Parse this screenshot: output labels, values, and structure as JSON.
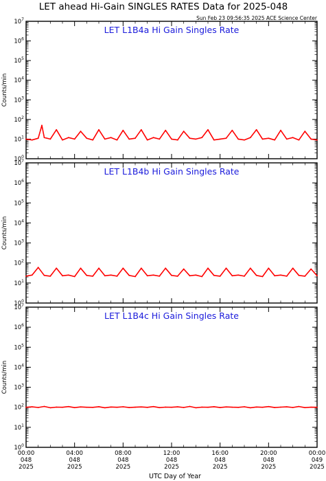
{
  "page": {
    "title": "LET ahead Hi-Gain SINGLES RATES Data for 2025-048",
    "timestamp": "Sun Feb 23 09:56:35 2025 ACE Science Center",
    "xlabel": "UTC Day of Year"
  },
  "colors": {
    "series": "#ff0000",
    "panel_title": "#1a1adb",
    "axis": "#000000",
    "background": "#ffffff"
  },
  "x_ticks": [
    {
      "time": "00:00",
      "day": "048",
      "year": "2025",
      "hours": 0
    },
    {
      "time": "04:00",
      "day": "048",
      "year": "2025",
      "hours": 4
    },
    {
      "time": "08:00",
      "day": "048",
      "year": "2025",
      "hours": 8
    },
    {
      "time": "12:00",
      "day": "048",
      "year": "2025",
      "hours": 12
    },
    {
      "time": "16:00",
      "day": "048",
      "year": "2025",
      "hours": 16
    },
    {
      "time": "20:00",
      "day": "048",
      "year": "2025",
      "hours": 20
    },
    {
      "time": "00:00",
      "day": "049",
      "year": "2025",
      "hours": 24
    }
  ],
  "chart_data": [
    {
      "type": "line",
      "title": "LET L1B4a Hi Gain Singles Rate",
      "ylabel": "Counts/min",
      "xlabel": "UTC Day of Year",
      "yscale": "log",
      "ylim": [
        1,
        10000000
      ],
      "xlim": [
        0,
        24
      ],
      "y_tick_labels": [
        "10^0",
        "10^1",
        "10^2",
        "10^3",
        "10^4",
        "10^5",
        "10^6",
        "10^7"
      ],
      "grid": false,
      "series": [
        {
          "x": [
            0,
            0.5,
            1,
            1.3,
            1.5,
            2,
            2.5,
            3,
            3.5,
            4,
            4.5,
            5,
            5.5,
            6,
            6.5,
            7,
            7.5,
            8,
            8.5,
            9,
            9.5,
            10,
            10.5,
            11,
            11.5,
            12,
            12.5,
            13,
            13.5,
            14,
            14.5,
            15,
            15.5,
            16,
            16.5,
            17,
            17.5,
            18,
            18.5,
            19,
            19.5,
            20,
            20.5,
            21,
            21.5,
            22,
            22.5,
            23,
            23.5,
            24
          ],
          "y": [
            10,
            9,
            11,
            50,
            12,
            10,
            30,
            9,
            12,
            10,
            25,
            11,
            9,
            30,
            10,
            12,
            9,
            28,
            10,
            11,
            30,
            9,
            12,
            10,
            28,
            10,
            9,
            25,
            11,
            10,
            12,
            30,
            9,
            10,
            11,
            28,
            10,
            9,
            12,
            30,
            10,
            11,
            9,
            28,
            10,
            12,
            9,
            25,
            10,
            9
          ]
        }
      ]
    },
    {
      "type": "line",
      "title": "LET L1B4b Hi Gain Singles Rate",
      "ylabel": "Counts/min",
      "xlabel": "UTC Day of Year",
      "yscale": "log",
      "ylim": [
        1,
        10000000
      ],
      "xlim": [
        0,
        24
      ],
      "y_tick_labels": [
        "10^0",
        "10^1",
        "10^2",
        "10^3",
        "10^4",
        "10^5",
        "10^6",
        "10^7"
      ],
      "grid": false,
      "series": [
        {
          "x": [
            0,
            0.5,
            1,
            1.5,
            2,
            2.5,
            3,
            3.5,
            4,
            4.5,
            5,
            5.5,
            6,
            6.5,
            7,
            7.5,
            8,
            8.5,
            9,
            9.5,
            10,
            10.5,
            11,
            11.5,
            12,
            12.5,
            13,
            13.5,
            14,
            14.5,
            15,
            15.5,
            16,
            16.5,
            17,
            17.5,
            18,
            18.5,
            19,
            19.5,
            20,
            20.5,
            21,
            21.5,
            22,
            22.5,
            23,
            23.5,
            24
          ],
          "y": [
            22,
            25,
            60,
            24,
            22,
            55,
            23,
            25,
            21,
            55,
            24,
            22,
            55,
            23,
            25,
            22,
            55,
            24,
            21,
            55,
            23,
            25,
            22,
            55,
            24,
            22,
            50,
            23,
            25,
            21,
            55,
            24,
            22,
            55,
            23,
            25,
            22,
            55,
            24,
            21,
            55,
            23,
            25,
            22,
            55,
            24,
            22,
            50,
            23
          ]
        }
      ]
    },
    {
      "type": "line",
      "title": "LET L1B4c Hi Gain Singles Rate",
      "ylabel": "Counts/min",
      "xlabel": "UTC Day of Year",
      "yscale": "log",
      "ylim": [
        1,
        10000000
      ],
      "xlim": [
        0,
        24
      ],
      "y_tick_labels": [
        "10^0",
        "10^1",
        "10^2",
        "10^3",
        "10^4",
        "10^5",
        "10^6",
        "10^7"
      ],
      "grid": false,
      "series": [
        {
          "x": [
            0,
            0.5,
            1,
            1.5,
            2,
            2.5,
            3,
            3.5,
            4,
            4.5,
            5,
            5.5,
            6,
            6.5,
            7,
            7.5,
            8,
            8.5,
            9,
            9.5,
            10,
            10.5,
            11,
            11.5,
            12,
            12.5,
            13,
            13.5,
            14,
            14.5,
            15,
            15.5,
            16,
            16.5,
            17,
            17.5,
            18,
            18.5,
            19,
            19.5,
            20,
            20.5,
            21,
            21.5,
            22,
            22.5,
            23,
            23.5,
            24
          ],
          "y": [
            100,
            105,
            98,
            110,
            95,
            102,
            100,
            108,
            96,
            104,
            100,
            99,
            107,
            95,
            103,
            100,
            106,
            97,
            101,
            104,
            99,
            108,
            96,
            102,
            100,
            105,
            98,
            110,
            95,
            102,
            100,
            107,
            97,
            104,
            101,
            99,
            106,
            95,
            103,
            100,
            108,
            97,
            102,
            105,
            98,
            109,
            96,
            101,
            100
          ]
        }
      ]
    }
  ]
}
